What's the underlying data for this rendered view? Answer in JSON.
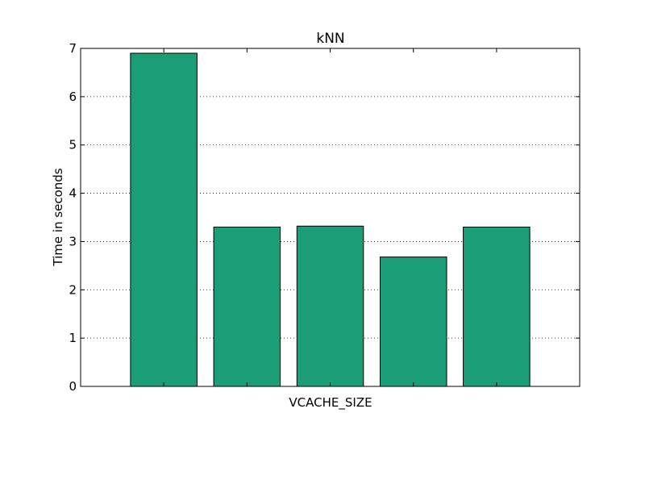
{
  "chart_data": {
    "type": "bar",
    "title": "kNN",
    "xlabel": "VCACHE_SIZE",
    "ylabel": "Time in seconds",
    "categories": [
      "",
      "",
      "",
      "",
      ""
    ],
    "values": [
      6.9,
      3.3,
      3.32,
      2.68,
      3.3
    ],
    "ylim": [
      0,
      7
    ],
    "yticks": [
      0,
      1,
      2,
      3,
      4,
      5,
      6,
      7
    ],
    "yticklabels": [
      "0",
      "1",
      "2",
      "3",
      "4",
      "5",
      "6",
      "7"
    ],
    "grid": true,
    "bar_color": "#1b9e77"
  }
}
